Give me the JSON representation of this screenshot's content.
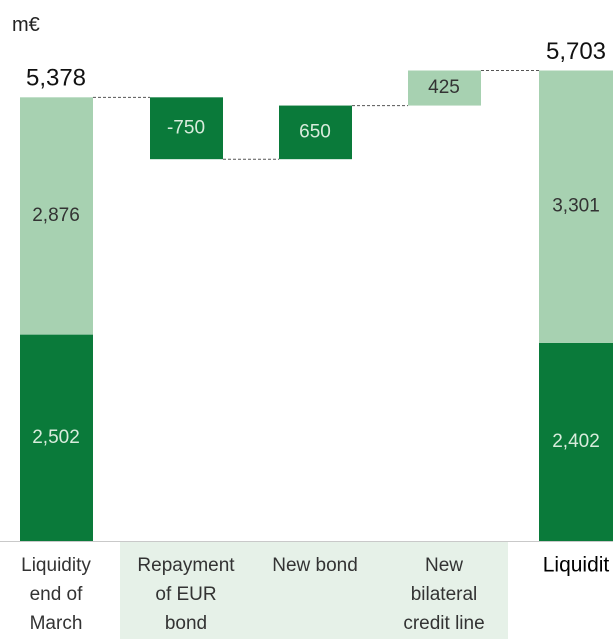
{
  "unit": "m€",
  "chart_data": {
    "type": "bar",
    "subtype": "waterfall",
    "unit": "m€",
    "categories": [
      "Liquidity end of March",
      "Repayment of EUR bond",
      "New bond",
      "New bilateral credit line",
      "Liquidit"
    ],
    "display_labels": [
      "Liquidity\nend of\nMarch",
      "Repayment\nof EUR\nbond",
      "New bond",
      "New\nbilateral\ncredit line",
      "Liquidit"
    ],
    "totals": [
      {
        "category": "Liquidity end of March",
        "total": 5378,
        "total_label": "5,378",
        "segments": [
          {
            "value": 2502,
            "label": "2,502",
            "color": "#0a7a3a"
          },
          {
            "value": 2876,
            "label": "2,876",
            "color": "#a7d1b1"
          }
        ]
      },
      {
        "category": "Liquidit",
        "total": 5703,
        "total_label": "5,703",
        "segments": [
          {
            "value": 2402,
            "label": "2,402",
            "color": "#0a7a3a"
          },
          {
            "value": 3301,
            "label": "3,301",
            "color": "#a7d1b1"
          }
        ]
      }
    ],
    "steps": [
      {
        "category": "Repayment of EUR bond",
        "value": -750,
        "label": "-750",
        "color": "#0a7a3a"
      },
      {
        "category": "New bond",
        "value": 650,
        "label": "650",
        "color": "#0a7a3a"
      },
      {
        "category": "New bilateral credit line",
        "value": 425,
        "label": "425",
        "color": "#a7d1b1"
      }
    ],
    "ylim": [
      0,
      6000
    ],
    "grid": false,
    "legend": "none",
    "colors": {
      "dark_green": "#0a7a3a",
      "light_green": "#a7d1b1",
      "label_strip": "#e6f1e8",
      "connector": "#555555"
    }
  }
}
